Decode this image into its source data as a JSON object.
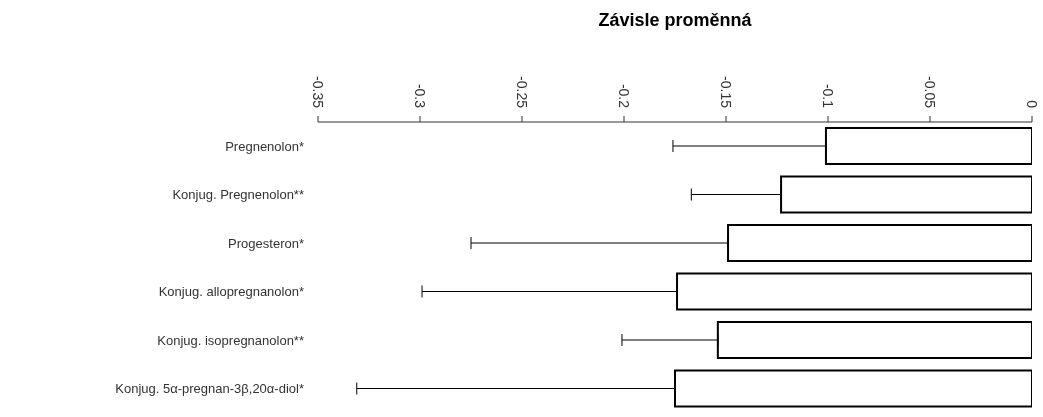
{
  "chart_data": {
    "type": "bar",
    "orientation": "horizontal",
    "title": "Závisle proměnná",
    "categories": [
      "Pregnenolon*",
      "Konjug. Pregnenolon**",
      "Progesteron*",
      "Konjug. allopregnanolon*",
      "Konjug. isopregnanolon**",
      "Konjug. 5α-pregnan-3β,20α-diol*"
    ],
    "values": [
      -0.101,
      -0.123,
      -0.149,
      -0.174,
      -0.154,
      -0.175
    ],
    "errors": [
      [
        -0.176,
        -0.101
      ],
      [
        -0.167,
        -0.123
      ],
      [
        -0.275,
        -0.149
      ],
      [
        -0.299,
        -0.174
      ],
      [
        -0.201,
        -0.154
      ],
      [
        -0.331,
        -0.175
      ]
    ],
    "color": "#ffffff",
    "xlim": [
      -0.35,
      0
    ],
    "xticks": [
      -0.35,
      -0.3,
      -0.25,
      -0.2,
      -0.15,
      -0.1,
      -0.05,
      0
    ],
    "grid": false
  }
}
